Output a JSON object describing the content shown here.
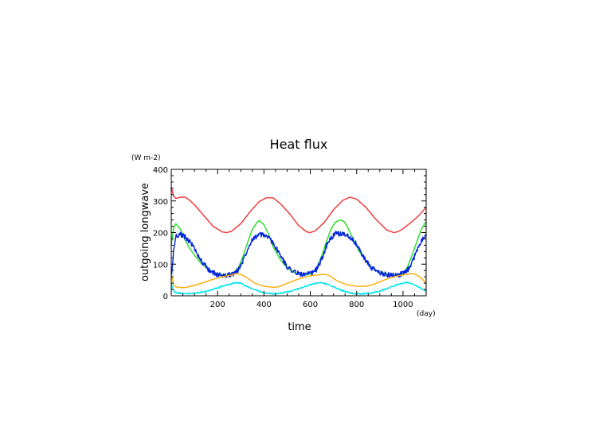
{
  "chart_data": {
    "type": "line",
    "title": "Heat flux",
    "ylabel": "outgoing longwave",
    "yunit": "(W m-2)",
    "xlabel": "time",
    "xunit": "(day)",
    "xlim": [
      0,
      1100
    ],
    "ylim": [
      0,
      400
    ],
    "xticks": [
      200,
      400,
      600,
      800,
      1000
    ],
    "yticks": [
      0,
      100,
      200,
      300,
      400
    ],
    "series": [
      {
        "color": "#ee3333",
        "x": [
          0,
          10,
          20,
          40,
          60,
          80,
          100,
          140,
          180,
          220,
          240,
          260,
          300,
          340,
          380,
          410,
          440,
          470,
          510,
          550,
          585,
          600,
          620,
          660,
          700,
          740,
          770,
          800,
          840,
          880,
          930,
          960,
          980,
          1000,
          1040,
          1070,
          1100
        ],
        "values": [
          345,
          315,
          308,
          312,
          312,
          302,
          288,
          254,
          220,
          202,
          200,
          204,
          228,
          266,
          298,
          310,
          310,
          292,
          260,
          222,
          202,
          200,
          205,
          232,
          272,
          302,
          312,
          306,
          280,
          244,
          208,
          200,
          203,
          212,
          235,
          255,
          280
        ]
      },
      {
        "color": "#22dd22",
        "x": [
          0,
          10,
          20,
          40,
          60,
          80,
          100,
          130,
          160,
          200,
          240,
          270,
          290,
          310,
          330,
          350,
          370,
          380,
          400,
          420,
          440,
          470,
          500,
          540,
          580,
          610,
          630,
          650,
          670,
          690,
          710,
          730,
          745,
          760,
          780,
          810,
          850,
          890,
          930,
          970,
          1000,
          1020,
          1040,
          1060,
          1080,
          1100
        ],
        "values": [
          160,
          215,
          228,
          210,
          175,
          150,
          128,
          102,
          84,
          68,
          64,
          72,
          90,
          125,
          170,
          210,
          232,
          238,
          225,
          195,
          155,
          115,
          88,
          70,
          65,
          72,
          92,
          128,
          172,
          212,
          234,
          240,
          236,
          218,
          188,
          142,
          100,
          78,
          68,
          65,
          70,
          92,
          130,
          172,
          212,
          235
        ]
      },
      {
        "color": "#0022dd",
        "noise": 8,
        "x": [
          0,
          10,
          20,
          40,
          60,
          80,
          100,
          130,
          160,
          200,
          240,
          270,
          290,
          310,
          330,
          350,
          380,
          410,
          440,
          470,
          500,
          540,
          580,
          610,
          630,
          650,
          670,
          690,
          710,
          740,
          770,
          800,
          830,
          860,
          900,
          940,
          980,
          1010,
          1030,
          1050,
          1070,
          1090,
          1100
        ],
        "values": [
          50,
          140,
          190,
          195,
          185,
          172,
          150,
          110,
          82,
          66,
          64,
          70,
          82,
          112,
          150,
          180,
          194,
          190,
          168,
          128,
          92,
          72,
          66,
          72,
          86,
          118,
          158,
          184,
          196,
          196,
          188,
          162,
          122,
          90,
          72,
          66,
          66,
          72,
          90,
          125,
          162,
          188,
          195
        ]
      },
      {
        "color": "#ffaa00",
        "x": [
          0,
          10,
          20,
          40,
          60,
          100,
          140,
          180,
          220,
          260,
          280,
          300,
          320,
          340,
          360,
          400,
          440,
          460,
          480,
          520,
          560,
          600,
          640,
          660,
          680,
          700,
          720,
          760,
          800,
          840,
          880,
          920,
          960,
          1000,
          1040,
          1060,
          1080,
          1100
        ],
        "values": [
          70,
          35,
          28,
          26,
          26,
          33,
          42,
          52,
          60,
          66,
          70,
          68,
          60,
          50,
          40,
          30,
          27,
          28,
          33,
          45,
          56,
          63,
          67,
          68,
          65,
          55,
          45,
          35,
          30,
          30,
          38,
          50,
          60,
          66,
          70,
          66,
          55,
          40
        ]
      },
      {
        "color": "#00e5ee",
        "noise": 2,
        "x": [
          0,
          10,
          20,
          40,
          60,
          80,
          100,
          140,
          180,
          220,
          260,
          280,
          300,
          320,
          360,
          400,
          440,
          460,
          480,
          520,
          560,
          600,
          630,
          650,
          670,
          700,
          740,
          780,
          820,
          860,
          900,
          940,
          980,
          1000,
          1020,
          1040,
          1060,
          1080,
          1100
        ],
        "values": [
          40,
          15,
          10,
          8,
          7,
          7,
          8,
          12,
          20,
          30,
          38,
          42,
          40,
          32,
          20,
          10,
          6,
          7,
          9,
          15,
          25,
          35,
          40,
          41,
          38,
          28,
          16,
          8,
          6,
          8,
          15,
          25,
          36,
          40,
          42,
          38,
          30,
          22,
          15
        ]
      }
    ]
  }
}
